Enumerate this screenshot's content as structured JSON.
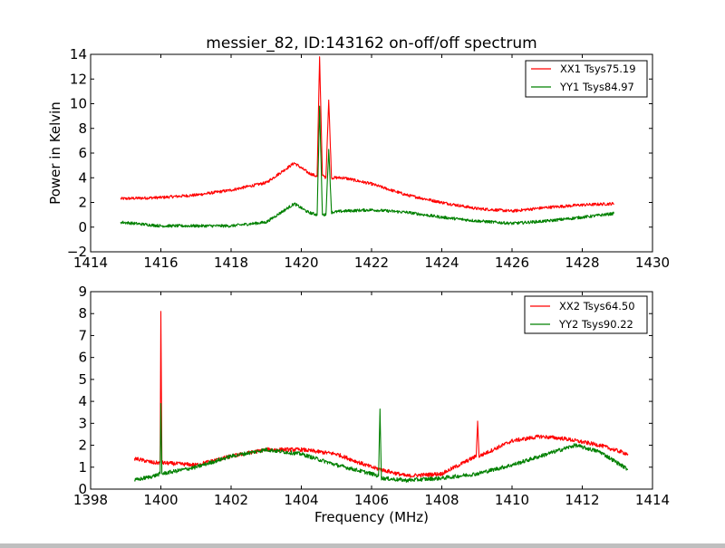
{
  "figure": {
    "title": "messier_82, ID:143162 on-off/off spectrum"
  },
  "colors": {
    "xx": "#ff0000",
    "yy": "#008000"
  },
  "chart_data": [
    {
      "type": "line",
      "title": "messier_82, ID:143162 on-off/off spectrum",
      "xlabel": "",
      "ylabel": "Power in Kelvin",
      "xlim": [
        1414,
        1430
      ],
      "ylim": [
        -2,
        14
      ],
      "xticks": [
        "1414",
        "1416",
        "1418",
        "1420",
        "1422",
        "1424",
        "1426",
        "1428",
        "1430"
      ],
      "yticks": [
        "−2",
        "0",
        "2",
        "4",
        "6",
        "8",
        "10",
        "12",
        "14"
      ],
      "xtick_values": [
        1414,
        1416,
        1418,
        1420,
        1422,
        1424,
        1426,
        1428,
        1430
      ],
      "ytick_values": [
        -2,
        0,
        2,
        4,
        6,
        8,
        10,
        12,
        14
      ],
      "legend_position": "top-right",
      "grid": false,
      "series": [
        {
          "name": "XX1 Tsys75.19",
          "color": "#ff0000",
          "x": [
            1414.85,
            1416,
            1417,
            1418,
            1419,
            1419.8,
            1420.2,
            1420.45,
            1420.52,
            1420.6,
            1420.7,
            1420.78,
            1420.86,
            1421.2,
            1422,
            1423,
            1424,
            1425,
            1426,
            1427,
            1428,
            1428.9
          ],
          "y": [
            2.3,
            2.4,
            2.6,
            3.0,
            3.6,
            5.2,
            4.4,
            4.1,
            13.8,
            4.2,
            4.0,
            10.3,
            4.0,
            4.0,
            3.5,
            2.6,
            2.0,
            1.5,
            1.3,
            1.6,
            1.8,
            1.9
          ]
        },
        {
          "name": "YY1 Tsys84.97",
          "color": "#008000",
          "x": [
            1414.85,
            1416,
            1417,
            1418,
            1419,
            1419.8,
            1420.2,
            1420.45,
            1420.52,
            1420.6,
            1420.7,
            1420.78,
            1420.86,
            1421.2,
            1422,
            1423,
            1424,
            1425,
            1426,
            1427,
            1428,
            1428.9
          ],
          "y": [
            0.4,
            0.1,
            0.1,
            0.1,
            0.4,
            1.9,
            1.2,
            1.0,
            9.8,
            1.0,
            1.0,
            6.3,
            1.2,
            1.3,
            1.4,
            1.2,
            0.8,
            0.5,
            0.3,
            0.5,
            0.8,
            1.1
          ]
        }
      ]
    },
    {
      "type": "line",
      "title": "",
      "xlabel": "Frequency (MHz)",
      "ylabel": "",
      "xlim": [
        1398,
        1414
      ],
      "ylim": [
        0,
        9
      ],
      "xticks": [
        "1398",
        "1400",
        "1402",
        "1404",
        "1406",
        "1408",
        "1410",
        "1412",
        "1414"
      ],
      "yticks": [
        "0",
        "1",
        "2",
        "3",
        "4",
        "5",
        "6",
        "7",
        "8",
        "9"
      ],
      "xtick_values": [
        1398,
        1400,
        1402,
        1404,
        1406,
        1408,
        1410,
        1412,
        1414
      ],
      "ytick_values": [
        0,
        1,
        2,
        3,
        4,
        5,
        6,
        7,
        8,
        9
      ],
      "legend_position": "top-right",
      "grid": false,
      "series": [
        {
          "name": "XX2 Tsys64.50",
          "color": "#ff0000",
          "x": [
            1399.25,
            1399.8,
            1399.98,
            1400.0,
            1400.03,
            1401,
            1402,
            1403,
            1404,
            1405,
            1406,
            1407,
            1408,
            1408.98,
            1409.02,
            1409.06,
            1410,
            1410.8,
            1411.5,
            1412.5,
            1413.3
          ],
          "y": [
            1.4,
            1.2,
            1.2,
            8.1,
            1.2,
            1.1,
            1.5,
            1.8,
            1.8,
            1.6,
            1.0,
            0.6,
            0.7,
            1.5,
            3.1,
            1.5,
            2.2,
            2.4,
            2.3,
            2.0,
            1.6
          ]
        },
        {
          "name": "YY2 Tsys90.22",
          "color": "#008000",
          "x": [
            1399.25,
            1399.8,
            1399.98,
            1400.0,
            1400.03,
            1401,
            1402,
            1403,
            1404,
            1405,
            1406,
            1406.2,
            1406.24,
            1406.28,
            1407,
            1408,
            1409,
            1410,
            1411,
            1411.8,
            1412.5,
            1413.3
          ],
          "y": [
            0.4,
            0.6,
            0.7,
            3.9,
            0.7,
            1.0,
            1.5,
            1.8,
            1.6,
            1.1,
            0.7,
            0.6,
            3.65,
            0.5,
            0.4,
            0.5,
            0.7,
            1.1,
            1.6,
            2.0,
            1.7,
            0.9
          ]
        }
      ]
    }
  ]
}
